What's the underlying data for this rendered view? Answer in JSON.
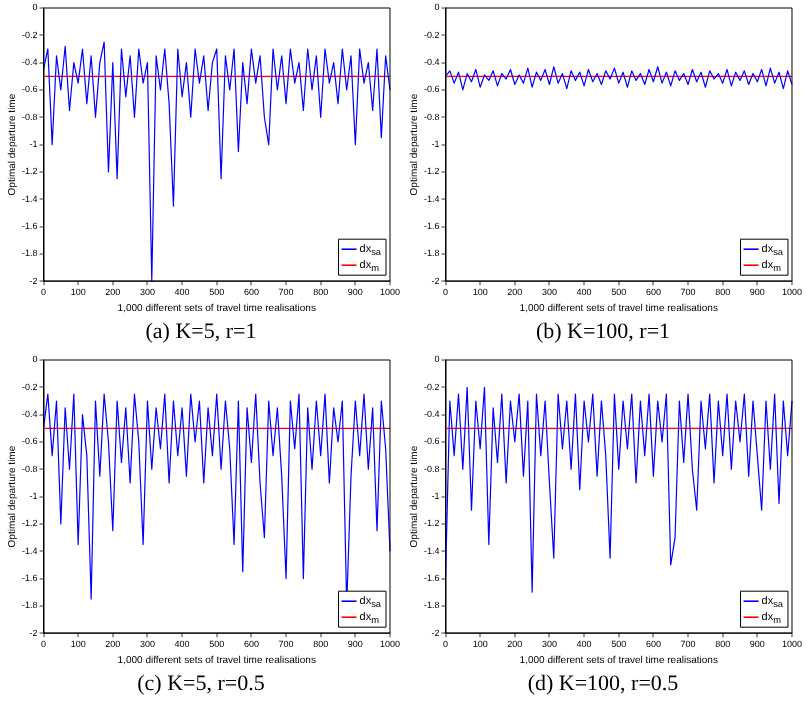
{
  "chart_data": [
    {
      "type": "line",
      "title": "(a) K=5, r=1",
      "xlabel": "1,000 different sets of travel time realisations",
      "ylabel": "Optimal departure time",
      "xlim": [
        0,
        1000
      ],
      "ylim": [
        -2,
        0
      ],
      "xticks": [
        0,
        100,
        200,
        300,
        400,
        500,
        600,
        700,
        800,
        900,
        1000
      ],
      "yticks": [
        -2,
        -1.8,
        -1.6,
        -1.4,
        -1.2,
        -1,
        -0.8,
        -0.6,
        -0.4,
        -0.2,
        0
      ],
      "grid": false,
      "legend": "bottom right",
      "marker": "none",
      "line_style": "solid",
      "x": [
        0,
        12.5,
        25,
        37.5,
        50,
        62.5,
        75,
        87.5,
        100,
        112.5,
        125,
        137.5,
        150,
        162.5,
        175,
        187.5,
        200,
        212.5,
        225,
        237.5,
        250,
        262.5,
        275,
        287.5,
        300,
        312.5,
        325,
        337.5,
        350,
        362.5,
        375,
        387.5,
        400,
        412.5,
        425,
        437.5,
        450,
        462.5,
        475,
        487.5,
        500,
        512.5,
        525,
        537.5,
        550,
        562.5,
        575,
        587.5,
        600,
        612.5,
        625,
        637.5,
        650,
        662.5,
        675,
        687.5,
        700,
        712.5,
        725,
        737.5,
        750,
        762.5,
        775,
        787.5,
        800,
        812.5,
        825,
        837.5,
        850,
        862.5,
        875,
        887.5,
        900,
        912.5,
        925,
        937.5,
        950,
        962.5,
        975,
        987.5,
        1000
      ],
      "series": [
        {
          "name": "dx$_{sa}$",
          "color": "#0000ff",
          "values": [
            -0.45,
            -0.3,
            -1.0,
            -0.35,
            -0.6,
            -0.28,
            -0.75,
            -0.4,
            -0.55,
            -0.3,
            -0.7,
            -0.35,
            -0.8,
            -0.4,
            -0.25,
            -1.2,
            -0.4,
            -1.25,
            -0.3,
            -0.65,
            -0.35,
            -0.8,
            -0.3,
            -0.55,
            -0.4,
            -2,
            -0.35,
            -0.6,
            -0.3,
            -0.7,
            -1.45,
            -0.3,
            -0.65,
            -0.4,
            -0.8,
            -0.3,
            -0.55,
            -0.35,
            -0.75,
            -0.4,
            -0.3,
            -1.25,
            -0.35,
            -0.6,
            -0.3,
            -1.05,
            -0.4,
            -0.7,
            -0.3,
            -0.55,
            -0.35,
            -0.8,
            -1.0,
            -0.3,
            -0.6,
            -0.35,
            -0.7,
            -0.3,
            -0.55,
            -0.4,
            -0.75,
            -0.3,
            -0.6,
            -0.35,
            -0.8,
            -0.3,
            -0.55,
            -0.4,
            -0.7,
            -0.3,
            -0.6,
            -0.35,
            -1.0,
            -0.3,
            -0.55,
            -0.4,
            -0.75,
            -0.3,
            -0.95,
            -0.35,
            -0.6
          ]
        },
        {
          "name": "dx$_{m}$",
          "color": "#ff0000",
          "values": [
            -0.5,
            -0.5,
            -0.5,
            -0.5,
            -0.5,
            -0.5,
            -0.5,
            -0.5,
            -0.5,
            -0.5,
            -0.5,
            -0.5,
            -0.5,
            -0.5,
            -0.5,
            -0.5,
            -0.5,
            -0.5,
            -0.5,
            -0.5,
            -0.5,
            -0.5,
            -0.5,
            -0.5,
            -0.5,
            -0.5,
            -0.5,
            -0.5,
            -0.5,
            -0.5,
            -0.5,
            -0.5,
            -0.5,
            -0.5,
            -0.5,
            -0.5,
            -0.5,
            -0.5,
            -0.5,
            -0.5,
            -0.5,
            -0.5,
            -0.5,
            -0.5,
            -0.5,
            -0.5,
            -0.5,
            -0.5,
            -0.5,
            -0.5,
            -0.5,
            -0.5,
            -0.5,
            -0.5,
            -0.5,
            -0.5,
            -0.5,
            -0.5,
            -0.5,
            -0.5,
            -0.5,
            -0.5,
            -0.5,
            -0.5,
            -0.5,
            -0.5,
            -0.5,
            -0.5,
            -0.5,
            -0.5,
            -0.5,
            -0.5,
            -0.5,
            -0.5,
            -0.5,
            -0.5,
            -0.5,
            -0.5,
            -0.5,
            -0.5,
            -0.5
          ]
        }
      ]
    },
    {
      "type": "line",
      "title": "(b) K=100, r=1",
      "xlabel": "1,000 different sets of travel time realisations",
      "ylabel": "Optimal departure time",
      "xlim": [
        0,
        1000
      ],
      "ylim": [
        -2,
        0
      ],
      "xticks": [
        0,
        100,
        200,
        300,
        400,
        500,
        600,
        700,
        800,
        900,
        1000
      ],
      "yticks": [
        -2,
        -1.8,
        -1.6,
        -1.4,
        -1.2,
        -1,
        -0.8,
        -0.6,
        -0.4,
        -0.2,
        0
      ],
      "grid": false,
      "legend": "bottom right",
      "marker": "none",
      "line_style": "solid",
      "x": [
        0,
        12.5,
        25,
        37.5,
        50,
        62.5,
        75,
        87.5,
        100,
        112.5,
        125,
        137.5,
        150,
        162.5,
        175,
        187.5,
        200,
        212.5,
        225,
        237.5,
        250,
        262.5,
        275,
        287.5,
        300,
        312.5,
        325,
        337.5,
        350,
        362.5,
        375,
        387.5,
        400,
        412.5,
        425,
        437.5,
        450,
        462.5,
        475,
        487.5,
        500,
        512.5,
        525,
        537.5,
        550,
        562.5,
        575,
        587.5,
        600,
        612.5,
        625,
        637.5,
        650,
        662.5,
        675,
        687.5,
        700,
        712.5,
        725,
        737.5,
        750,
        762.5,
        775,
        787.5,
        800,
        812.5,
        825,
        837.5,
        850,
        862.5,
        875,
        887.5,
        900,
        912.5,
        925,
        937.5,
        950,
        962.5,
        975,
        987.5,
        1000
      ],
      "series": [
        {
          "name": "dx$_{sa}$",
          "color": "#0000ff",
          "values": [
            -0.5,
            -0.46,
            -0.55,
            -0.47,
            -0.6,
            -0.48,
            -0.54,
            -0.45,
            -0.58,
            -0.49,
            -0.53,
            -0.46,
            -0.57,
            -0.48,
            -0.52,
            -0.45,
            -0.56,
            -0.49,
            -0.55,
            -0.44,
            -0.58,
            -0.47,
            -0.53,
            -0.45,
            -0.56,
            -0.43,
            -0.55,
            -0.48,
            -0.59,
            -0.46,
            -0.53,
            -0.47,
            -0.57,
            -0.45,
            -0.54,
            -0.48,
            -0.56,
            -0.46,
            -0.52,
            -0.44,
            -0.55,
            -0.47,
            -0.58,
            -0.46,
            -0.53,
            -0.48,
            -0.56,
            -0.45,
            -0.54,
            -0.43,
            -0.55,
            -0.47,
            -0.57,
            -0.46,
            -0.53,
            -0.48,
            -0.56,
            -0.45,
            -0.54,
            -0.47,
            -0.58,
            -0.46,
            -0.52,
            -0.48,
            -0.55,
            -0.45,
            -0.57,
            -0.47,
            -0.53,
            -0.46,
            -0.56,
            -0.48,
            -0.54,
            -0.45,
            -0.57,
            -0.44,
            -0.55,
            -0.47,
            -0.59,
            -0.46,
            -0.56
          ]
        },
        {
          "name": "dx$_{m}$",
          "color": "#ff0000",
          "values": [
            -0.5,
            -0.5,
            -0.5,
            -0.5,
            -0.5,
            -0.5,
            -0.5,
            -0.5,
            -0.5,
            -0.5,
            -0.5,
            -0.5,
            -0.5,
            -0.5,
            -0.5,
            -0.5,
            -0.5,
            -0.5,
            -0.5,
            -0.5,
            -0.5,
            -0.5,
            -0.5,
            -0.5,
            -0.5,
            -0.5,
            -0.5,
            -0.5,
            -0.5,
            -0.5,
            -0.5,
            -0.5,
            -0.5,
            -0.5,
            -0.5,
            -0.5,
            -0.5,
            -0.5,
            -0.5,
            -0.5,
            -0.5,
            -0.5,
            -0.5,
            -0.5,
            -0.5,
            -0.5,
            -0.5,
            -0.5,
            -0.5,
            -0.5,
            -0.5,
            -0.5,
            -0.5,
            -0.5,
            -0.5,
            -0.5,
            -0.5,
            -0.5,
            -0.5,
            -0.5,
            -0.5,
            -0.5,
            -0.5,
            -0.5,
            -0.5,
            -0.5,
            -0.5,
            -0.5,
            -0.5,
            -0.5,
            -0.5,
            -0.5,
            -0.5,
            -0.5,
            -0.5,
            -0.5,
            -0.5,
            -0.5,
            -0.5,
            -0.5,
            -0.5
          ]
        }
      ]
    },
    {
      "type": "line",
      "title": "(c) K=5, r=0.5",
      "xlabel": "1,000 different sets of travel time realisations",
      "ylabel": "Optimal departure time",
      "xlim": [
        0,
        1000
      ],
      "ylim": [
        -2,
        0
      ],
      "xticks": [
        0,
        100,
        200,
        300,
        400,
        500,
        600,
        700,
        800,
        900,
        1000
      ],
      "yticks": [
        -2,
        -1.8,
        -1.6,
        -1.4,
        -1.2,
        -1,
        -0.8,
        -0.6,
        -0.4,
        -0.2,
        0
      ],
      "grid": false,
      "legend": "bottom right",
      "marker": "none",
      "line_style": "solid",
      "x": [
        0,
        12.5,
        25,
        37.5,
        50,
        62.5,
        75,
        87.5,
        100,
        112.5,
        125,
        137.5,
        150,
        162.5,
        175,
        187.5,
        200,
        212.5,
        225,
        237.5,
        250,
        262.5,
        275,
        287.5,
        300,
        312.5,
        325,
        337.5,
        350,
        362.5,
        375,
        387.5,
        400,
        412.5,
        425,
        437.5,
        450,
        462.5,
        475,
        487.5,
        500,
        512.5,
        525,
        537.5,
        550,
        562.5,
        575,
        587.5,
        600,
        612.5,
        625,
        637.5,
        650,
        662.5,
        675,
        687.5,
        700,
        712.5,
        725,
        737.5,
        750,
        762.5,
        775,
        787.5,
        800,
        812.5,
        825,
        837.5,
        850,
        862.5,
        875,
        887.5,
        900,
        912.5,
        925,
        937.5,
        950,
        962.5,
        975,
        987.5,
        1000
      ],
      "series": [
        {
          "name": "dx$_{sa}$",
          "color": "#0000ff",
          "values": [
            -0.5,
            -0.25,
            -0.7,
            -0.3,
            -1.2,
            -0.35,
            -0.8,
            -0.25,
            -1.35,
            -0.4,
            -0.7,
            -1.75,
            -0.3,
            -0.85,
            -0.25,
            -0.6,
            -1.25,
            -0.3,
            -0.75,
            -0.35,
            -0.9,
            -0.25,
            -0.6,
            -1.35,
            -0.3,
            -0.8,
            -0.35,
            -0.65,
            -0.25,
            -0.9,
            -0.3,
            -0.7,
            -0.35,
            -0.85,
            -0.25,
            -0.6,
            -0.3,
            -0.9,
            -0.35,
            -0.7,
            -0.25,
            -0.8,
            -0.3,
            -0.65,
            -1.35,
            -0.3,
            -1.55,
            -0.35,
            -0.75,
            -0.25,
            -0.9,
            -1.3,
            -0.3,
            -0.7,
            -0.35,
            -0.85,
            -1.6,
            -0.3,
            -0.65,
            -0.25,
            -1.6,
            -0.35,
            -0.8,
            -0.3,
            -0.7,
            -0.25,
            -0.9,
            -0.35,
            -0.6,
            -0.3,
            -1.8,
            -0.85,
            -0.3,
            -0.7,
            -0.25,
            -0.8,
            -0.35,
            -1.25,
            -0.3,
            -0.65,
            -1.4
          ]
        },
        {
          "name": "dx$_{m}$",
          "color": "#ff0000",
          "values": [
            -0.5,
            -0.5,
            -0.5,
            -0.5,
            -0.5,
            -0.5,
            -0.5,
            -0.5,
            -0.5,
            -0.5,
            -0.5,
            -0.5,
            -0.5,
            -0.5,
            -0.5,
            -0.5,
            -0.5,
            -0.5,
            -0.5,
            -0.5,
            -0.5,
            -0.5,
            -0.5,
            -0.5,
            -0.5,
            -0.5,
            -0.5,
            -0.5,
            -0.5,
            -0.5,
            -0.5,
            -0.5,
            -0.5,
            -0.5,
            -0.5,
            -0.5,
            -0.5,
            -0.5,
            -0.5,
            -0.5,
            -0.5,
            -0.5,
            -0.5,
            -0.5,
            -0.5,
            -0.5,
            -0.5,
            -0.5,
            -0.5,
            -0.5,
            -0.5,
            -0.5,
            -0.5,
            -0.5,
            -0.5,
            -0.5,
            -0.5,
            -0.5,
            -0.5,
            -0.5,
            -0.5,
            -0.5,
            -0.5,
            -0.5,
            -0.5,
            -0.5,
            -0.5,
            -0.5,
            -0.5,
            -0.5,
            -0.5,
            -0.5,
            -0.5,
            -0.5,
            -0.5,
            -0.5,
            -0.5,
            -0.5,
            -0.5,
            -0.5,
            -0.5
          ]
        }
      ]
    },
    {
      "type": "line",
      "title": "(d) K=100, r=0.5",
      "xlabel": "1,000 different sets of travel time realisations",
      "ylabel": "Optimal departure time",
      "xlim": [
        0,
        1000
      ],
      "ylim": [
        -2,
        0
      ],
      "xticks": [
        0,
        100,
        200,
        300,
        400,
        500,
        600,
        700,
        800,
        900,
        1000
      ],
      "yticks": [
        -2,
        -1.8,
        -1.6,
        -1.4,
        -1.2,
        -1,
        -0.8,
        -0.6,
        -0.4,
        -0.2,
        0
      ],
      "grid": false,
      "legend": "bottom right",
      "marker": "none",
      "line_style": "solid",
      "x": [
        0,
        12.5,
        25,
        37.5,
        50,
        62.5,
        75,
        87.5,
        100,
        112.5,
        125,
        137.5,
        150,
        162.5,
        175,
        187.5,
        200,
        212.5,
        225,
        237.5,
        250,
        262.5,
        275,
        287.5,
        300,
        312.5,
        325,
        337.5,
        350,
        362.5,
        375,
        387.5,
        400,
        412.5,
        425,
        437.5,
        450,
        462.5,
        475,
        487.5,
        500,
        512.5,
        525,
        537.5,
        550,
        562.5,
        575,
        587.5,
        600,
        612.5,
        625,
        637.5,
        650,
        662.5,
        675,
        687.5,
        700,
        712.5,
        725,
        737.5,
        750,
        762.5,
        775,
        787.5,
        800,
        812.5,
        825,
        837.5,
        850,
        862.5,
        875,
        887.5,
        900,
        912.5,
        925,
        937.5,
        950,
        962.5,
        975,
        987.5,
        1000
      ],
      "series": [
        {
          "name": "dx$_{sa}$",
          "color": "#0000ff",
          "values": [
            -1.6,
            -0.3,
            -0.7,
            -0.25,
            -0.8,
            -0.2,
            -1.1,
            -0.3,
            -0.65,
            -0.2,
            -1.35,
            -0.35,
            -0.75,
            -0.25,
            -0.9,
            -0.3,
            -0.6,
            -0.25,
            -0.85,
            -0.3,
            -1.7,
            -0.25,
            -0.7,
            -0.3,
            -0.9,
            -1.45,
            -0.25,
            -0.65,
            -0.3,
            -0.8,
            -0.25,
            -0.95,
            -0.3,
            -0.6,
            -0.25,
            -0.85,
            -0.3,
            -0.7,
            -1.45,
            -0.25,
            -0.8,
            -0.3,
            -0.65,
            -0.25,
            -0.9,
            -0.3,
            -0.7,
            -0.25,
            -0.85,
            -0.3,
            -0.6,
            -0.25,
            -1.5,
            -1.3,
            -0.3,
            -0.75,
            -0.25,
            -0.8,
            -1.1,
            -0.3,
            -0.65,
            -0.25,
            -0.9,
            -0.3,
            -0.7,
            -0.25,
            -0.8,
            -0.3,
            -0.6,
            -0.25,
            -0.85,
            -0.3,
            -0.7,
            -1.1,
            -0.3,
            -0.8,
            -0.25,
            -1.05,
            -0.3,
            -0.7,
            -0.3
          ]
        },
        {
          "name": "dx$_{m}$",
          "color": "#ff0000",
          "values": [
            -0.5,
            -0.5,
            -0.5,
            -0.5,
            -0.5,
            -0.5,
            -0.5,
            -0.5,
            -0.5,
            -0.5,
            -0.5,
            -0.5,
            -0.5,
            -0.5,
            -0.5,
            -0.5,
            -0.5,
            -0.5,
            -0.5,
            -0.5,
            -0.5,
            -0.5,
            -0.5,
            -0.5,
            -0.5,
            -0.5,
            -0.5,
            -0.5,
            -0.5,
            -0.5,
            -0.5,
            -0.5,
            -0.5,
            -0.5,
            -0.5,
            -0.5,
            -0.5,
            -0.5,
            -0.5,
            -0.5,
            -0.5,
            -0.5,
            -0.5,
            -0.5,
            -0.5,
            -0.5,
            -0.5,
            -0.5,
            -0.5,
            -0.5,
            -0.5,
            -0.5,
            -0.5,
            -0.5,
            -0.5,
            -0.5,
            -0.5,
            -0.5,
            -0.5,
            -0.5,
            -0.5,
            -0.5,
            -0.5,
            -0.5,
            -0.5,
            -0.5,
            -0.5,
            -0.5,
            -0.5,
            -0.5,
            -0.5,
            -0.5,
            -0.5,
            -0.5,
            -0.5,
            -0.5,
            -0.5,
            -0.5,
            -0.5,
            -0.5,
            -0.5
          ]
        }
      ]
    }
  ]
}
